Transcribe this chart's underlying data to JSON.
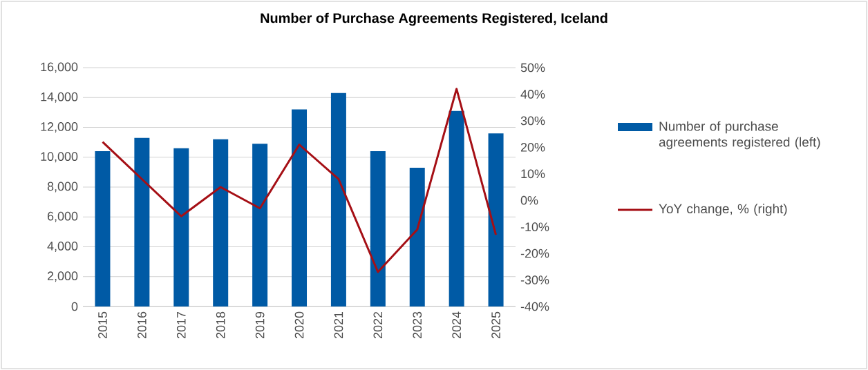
{
  "chart_data": {
    "type": "bar",
    "title": "Number of Purchase Agreements Registered, Iceland",
    "categories": [
      "2015",
      "2016",
      "2017",
      "2018",
      "2019",
      "2020",
      "2021",
      "2022",
      "2023",
      "2024",
      "2025"
    ],
    "series": [
      {
        "name": "Number of purchase agreements registered (left)",
        "color": "#005aa5",
        "values": [
          10400,
          11300,
          10600,
          11200,
          10900,
          13200,
          14300,
          10400,
          9300,
          13100,
          11600
        ]
      },
      {
        "name": "YoY change, % (right)",
        "type": "line",
        "axis": "y2",
        "color": "#a50f15",
        "values": [
          22,
          8,
          -6,
          5,
          -3,
          21,
          8,
          -27,
          -11,
          42,
          -13
        ]
      }
    ],
    "ylim": [
      0,
      16000
    ],
    "yticks": [
      0,
      {
        "value": 2000,
        "label": "2,000"
      },
      {
        "value": 4000,
        "label": "4,000"
      },
      {
        "value": 6000,
        "label": "6,000"
      },
      {
        "value": 8000,
        "label": "8,000"
      },
      {
        "value": 10000,
        "label": "10,000"
      },
      {
        "value": 12000,
        "label": "12,000"
      },
      {
        "value": 14000,
        "label": "14,000"
      },
      {
        "value": 16000,
        "label": "16,000"
      }
    ],
    "y2lim": [
      -40,
      50
    ],
    "y2ticks": [
      {
        "value": -40,
        "label": "-40%"
      },
      {
        "value": -30,
        "label": "-30%"
      },
      {
        "value": -20,
        "label": "-20%"
      },
      {
        "value": -10,
        "label": "-10%"
      },
      {
        "value": 0,
        "label": "0%"
      },
      {
        "value": 10,
        "label": "10%"
      },
      {
        "value": 20,
        "label": "20%"
      },
      {
        "value": 30,
        "label": "30%"
      },
      {
        "value": 40,
        "label": "40%"
      },
      {
        "value": 50,
        "label": "50%"
      }
    ],
    "grid": "y",
    "legend": "right",
    "marker": "none",
    "line_style": "solid"
  }
}
